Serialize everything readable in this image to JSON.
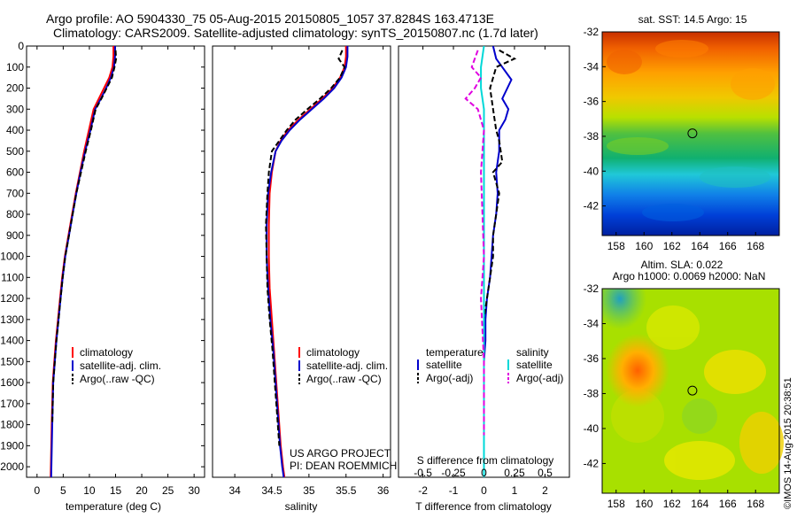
{
  "header": {
    "line1": "Argo profile: AO 5904330_75 05-Aug-2015 20150805_1057 37.8284S 163.4713E",
    "line2": "Climatology: CARS2009. Satellite-adjusted climatology: synTS_20150807.nc (1.7d later)"
  },
  "colors": {
    "climatology": "#ff0000",
    "satellite": "#0000cc",
    "argo": "#000000",
    "sal_satellite": "#00d8d8",
    "sal_argo": "#e000e0"
  },
  "depth_axis": {
    "range": [
      0,
      2050
    ],
    "ticks": [
      0,
      100,
      200,
      300,
      400,
      500,
      600,
      700,
      800,
      900,
      1000,
      1100,
      1200,
      1300,
      1400,
      1500,
      1600,
      1700,
      1800,
      1900,
      2000
    ]
  },
  "chart_data": [
    {
      "type": "line",
      "id": "temperature",
      "xlabel": "temperature (deg C)",
      "xlim": [
        -2,
        32
      ],
      "xticks": [
        0,
        5,
        10,
        15,
        20,
        25,
        30
      ],
      "ylim": [
        0,
        2050
      ],
      "legend": {
        "placement": "middle-center",
        "entries": [
          "climatology",
          "satellite-adj. clim.",
          "Argo(..raw -QC)"
        ]
      },
      "series": [
        {
          "name": "climatology",
          "color": "#ff0000",
          "x": [
            14.6,
            14.6,
            14.4,
            13.8,
            12.8,
            11.8,
            10.8,
            9.9,
            9.0,
            8.2,
            7.4,
            6.7,
            6.0,
            5.3,
            4.8,
            4.4,
            4.0,
            3.6,
            3.3,
            3.0,
            2.8,
            2.6
          ],
          "y": [
            0,
            50,
            100,
            150,
            200,
            250,
            300,
            400,
            500,
            600,
            700,
            800,
            900,
            1000,
            1100,
            1200,
            1300,
            1400,
            1500,
            1600,
            1800,
            2050
          ]
        },
        {
          "name": "satellite-adj. clim.",
          "color": "#0000cc",
          "x": [
            14.9,
            14.9,
            14.7,
            14.1,
            13.2,
            12.2,
            11.1,
            10.2,
            9.2,
            8.3,
            7.5,
            6.8,
            6.1,
            5.4,
            4.9,
            4.5,
            4.1,
            3.7,
            3.4,
            3.1,
            2.9,
            2.7
          ],
          "y": [
            0,
            50,
            100,
            150,
            200,
            250,
            300,
            400,
            500,
            600,
            700,
            800,
            900,
            1000,
            1100,
            1200,
            1300,
            1400,
            1500,
            1600,
            1800,
            2050
          ]
        },
        {
          "name": "Argo(..raw -QC)",
          "color": "#000000",
          "x": [
            15.0,
            15.1,
            14.8,
            14.3,
            13.3,
            12.3,
            11.2,
            10.3,
            9.3,
            8.4,
            7.5,
            6.8,
            6.1,
            5.4,
            4.9,
            4.5,
            4.1,
            3.7,
            3.4,
            3.1,
            2.9
          ],
          "y": [
            20,
            60,
            100,
            150,
            200,
            250,
            300,
            400,
            500,
            600,
            700,
            800,
            900,
            1000,
            1100,
            1200,
            1300,
            1400,
            1500,
            1600,
            1800
          ]
        }
      ]
    },
    {
      "type": "line",
      "id": "salinity",
      "xlabel": "salinity",
      "xlim": [
        33.7,
        36.1
      ],
      "xticks": [
        34,
        34.5,
        35,
        35.5,
        36
      ],
      "ylim": [
        0,
        2050
      ],
      "legend": {
        "placement": "middle-center",
        "entries": [
          "climatology",
          "satellite-adj. clim.",
          "Argo(..raw -QC)"
        ]
      },
      "annotation": [
        "US ARGO PROJECT",
        "PI: DEAN ROEMMICH"
      ],
      "series": [
        {
          "name": "climatology",
          "color": "#ff0000",
          "x": [
            35.5,
            35.5,
            35.48,
            35.42,
            35.32,
            35.18,
            35.02,
            34.86,
            34.72,
            34.62,
            34.55,
            34.5,
            34.47,
            34.46,
            34.46,
            34.47,
            34.5,
            34.53,
            34.56,
            34.59,
            34.62,
            34.65,
            34.67
          ],
          "y": [
            0,
            50,
            100,
            150,
            200,
            250,
            300,
            350,
            400,
            450,
            500,
            600,
            700,
            850,
            1000,
            1150,
            1300,
            1450,
            1600,
            1750,
            1900,
            2000,
            2050
          ]
        },
        {
          "name": "satellite-adj. clim.",
          "color": "#0000cc",
          "x": [
            35.52,
            35.52,
            35.5,
            35.44,
            35.34,
            35.2,
            35.04,
            34.88,
            34.74,
            34.63,
            34.55,
            34.49,
            34.45,
            34.43,
            34.43,
            34.45,
            34.48,
            34.52,
            34.55,
            34.58,
            34.61,
            34.64,
            34.66
          ],
          "y": [
            0,
            50,
            100,
            150,
            200,
            250,
            300,
            350,
            400,
            450,
            500,
            600,
            700,
            850,
            1000,
            1150,
            1300,
            1450,
            1600,
            1750,
            1900,
            2000,
            2050
          ]
        },
        {
          "name": "Argo(..raw -QC)",
          "color": "#000000",
          "x": [
            35.45,
            35.4,
            35.48,
            35.42,
            35.3,
            35.15,
            34.98,
            34.82,
            34.7,
            34.6,
            34.5,
            34.46,
            34.44,
            34.42,
            34.43,
            34.44,
            34.47,
            34.51,
            34.54,
            34.57,
            34.6
          ],
          "y": [
            20,
            60,
            100,
            150,
            200,
            250,
            300,
            350,
            400,
            450,
            500,
            600,
            700,
            850,
            1000,
            1150,
            1300,
            1450,
            1600,
            1750,
            1900
          ]
        }
      ]
    },
    {
      "type": "line",
      "id": "difference",
      "xlabel": "T difference from climatology",
      "xlabel_top": "S difference from climatology",
      "xlim": [
        -2.8,
        2.8
      ],
      "xticks": [
        -2,
        -1,
        0,
        1,
        2
      ],
      "xticks_top": [
        "-0.5",
        "-0.25",
        "0",
        "0.25",
        "0.5"
      ],
      "xticks_top_pos": [
        -2,
        -1,
        0,
        1,
        2
      ],
      "ylim": [
        0,
        2050
      ],
      "legend": {
        "placement": "middle-center",
        "titles": [
          "temperature",
          "salinity"
        ],
        "entries": [
          "satellite",
          "Argo(-adj)",
          "satellite",
          "Argo(-adj)"
        ]
      },
      "series": [
        {
          "name": "satellite",
          "color": "#0000cc",
          "group": "temperature",
          "x": [
            0.3,
            0.4,
            0.9,
            0.6,
            0.8,
            0.7,
            0.5,
            0.5,
            0.4,
            0.45,
            0.4,
            0.3,
            0.25,
            0.2,
            0.1,
            0.05,
            0.05,
            0.0,
            0.0,
            0.0,
            0.0
          ],
          "y": [
            0,
            60,
            160,
            250,
            300,
            350,
            400,
            500,
            600,
            700,
            800,
            900,
            1000,
            1100,
            1200,
            1300,
            1400,
            1500,
            1700,
            1900,
            2050
          ]
        },
        {
          "name": "Argo(-adj)",
          "color": "#000000",
          "group": "temperature",
          "x": [
            0.5,
            1.0,
            0.4,
            0.2,
            0.3,
            0.4,
            0.5,
            0.6,
            0.3,
            0.5,
            0.4,
            0.3,
            0.3,
            0.2,
            0.1,
            0.0,
            0.0,
            0.0,
            0.0
          ],
          "y": [
            20,
            60,
            100,
            200,
            300,
            400,
            450,
            550,
            600,
            700,
            800,
            900,
            1000,
            1100,
            1200,
            1300,
            1500,
            1700,
            1850
          ]
        },
        {
          "name": "satellite",
          "color": "#00d8d8",
          "group": "salinity",
          "x": [
            0.0,
            -0.1,
            -0.1,
            0.0,
            0.0,
            0.0,
            0.0,
            0.0,
            0.0,
            0.0,
            0.0,
            0.0
          ],
          "y": [
            0,
            100,
            200,
            300,
            400,
            600,
            800,
            1000,
            1200,
            1500,
            1800,
            2050
          ]
        },
        {
          "name": "Argo(-adj)",
          "color": "#e000e0",
          "group": "salinity",
          "x": [
            -0.2,
            -0.4,
            -0.1,
            -0.3,
            -0.6,
            -0.2,
            0.0,
            -0.1,
            0.0,
            -0.1,
            0.0,
            0.0
          ],
          "y": [
            20,
            100,
            150,
            200,
            250,
            300,
            400,
            600,
            1000,
            1200,
            1500,
            1850
          ]
        }
      ]
    }
  ],
  "maps": {
    "sst": {
      "title": "sat. SST: 14.5 Argo: 15",
      "lat_ticks": [
        -32,
        -34,
        -36,
        -38,
        -40,
        -42
      ],
      "lon_ticks": [
        158,
        160,
        162,
        164,
        166,
        168
      ],
      "lat_range": [
        -43.7,
        -32
      ],
      "lon_range": [
        157,
        169.7
      ],
      "marker": {
        "lon": 163.47,
        "lat": -37.83
      }
    },
    "sla": {
      "title_line1": "Altim. SLA: 0.022",
      "title_line2": "Argo h1000: 0.0069 h2000: NaN",
      "lat_ticks": [
        -32,
        -34,
        -36,
        -38,
        -40,
        -42
      ],
      "lon_ticks": [
        158,
        160,
        162,
        164,
        166,
        168
      ],
      "lat_range": [
        -43.7,
        -32
      ],
      "lon_range": [
        157,
        169.7
      ],
      "marker": {
        "lon": 163.47,
        "lat": -37.83
      }
    }
  },
  "credit": "©IMOS 14-Aug-2015 20:38:51"
}
